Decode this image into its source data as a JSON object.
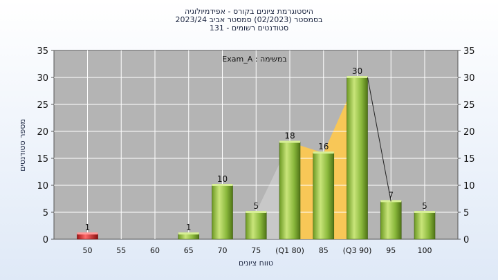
{
  "chart_data": {
    "type": "bar",
    "title_lines": [
      "היסטוגרמת ציונים בקורס - אפידמיולוגיה",
      "בסמסטר  (02/2023)  סמסטר אביב 2023/24",
      "סטודנטים רשומים - 131"
    ],
    "xlabel": "טווח ציונים",
    "ylabel": "מספר סטודנטים",
    "legend_text": "Exam_A : במשימה",
    "categories": [
      "50",
      "55",
      "60",
      "65",
      "70",
      "75",
      "(Q1 80)",
      "85",
      "(Q3 90)",
      "95",
      "100"
    ],
    "values": [
      1,
      0,
      0,
      1,
      10,
      5,
      18,
      16,
      30,
      7,
      5
    ],
    "data_labels": [
      "1",
      "",
      "",
      "1",
      "10",
      "5",
      "18",
      "16",
      "30",
      "7",
      "5"
    ],
    "ylim": [
      0,
      35
    ],
    "y_ticks": [
      0,
      5,
      10,
      15,
      20,
      25,
      30,
      35
    ],
    "grid": true,
    "bar_colors": {
      "default": "#8ab83c",
      "highlight": "#cc2222"
    },
    "iqr_band_color": "#ffc94d",
    "plot_bg_color": "#b4b4b4"
  }
}
